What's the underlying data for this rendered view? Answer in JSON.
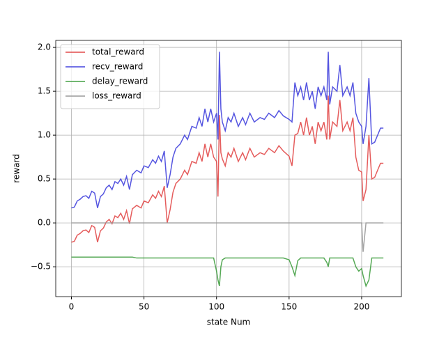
{
  "chart_data": {
    "type": "line",
    "xlabel": "state Num",
    "ylabel": "reward",
    "xlim": [
      -10.8,
      227.4
    ],
    "ylim": [
      -0.84,
      2.08
    ],
    "xticks": [
      0,
      50,
      100,
      150,
      200
    ],
    "yticks": [
      {
        "value": -0.5,
        "label": "−0.5"
      },
      {
        "value": 0,
        "label": "0.0"
      },
      {
        "value": 0.5,
        "label": "0.5"
      },
      {
        "value": 1,
        "label": "1.0"
      },
      {
        "value": 1.5,
        "label": "1.5"
      },
      {
        "value": 2,
        "label": "2.0"
      }
    ],
    "grid": true,
    "legend": "upper-left",
    "x": [
      0,
      2,
      4,
      6,
      8,
      10,
      12,
      14,
      16,
      18,
      20,
      22,
      24,
      26,
      28,
      30,
      32,
      34,
      36,
      38,
      40,
      42,
      45,
      48,
      50,
      53,
      56,
      58,
      60,
      62,
      64,
      66,
      68,
      70,
      72,
      75,
      78,
      80,
      83,
      86,
      88,
      90,
      92,
      94,
      96,
      98,
      100,
      101,
      102,
      103,
      104,
      106,
      108,
      110,
      112,
      115,
      118,
      120,
      123,
      126,
      130,
      133,
      136,
      140,
      143,
      146,
      150,
      152,
      154,
      156,
      158,
      160,
      162,
      164,
      166,
      168,
      170,
      172,
      174,
      176,
      177,
      178,
      180,
      183,
      185,
      187,
      190,
      192,
      194,
      196,
      198,
      200,
      201,
      203,
      205,
      207,
      209,
      211,
      213,
      215
    ],
    "series": [
      {
        "name": "total_reward",
        "color": "#e24a4a",
        "values": [
          -0.22,
          -0.21,
          -0.14,
          -0.12,
          -0.09,
          -0.08,
          -0.11,
          -0.03,
          -0.05,
          -0.22,
          -0.09,
          -0.06,
          0.01,
          0.04,
          -0.01,
          0.08,
          0.06,
          0.11,
          0.04,
          0.14,
          -0.01,
          0.16,
          0.2,
          0.17,
          0.25,
          0.23,
          0.32,
          0.28,
          0.36,
          0.3,
          0.42,
          0.0,
          0.15,
          0.35,
          0.45,
          0.5,
          0.6,
          0.55,
          0.7,
          0.68,
          0.8,
          0.7,
          0.9,
          0.75,
          0.9,
          0.75,
          0.7,
          0.3,
          1.23,
          0.8,
          0.73,
          0.65,
          0.8,
          0.75,
          0.85,
          0.7,
          0.8,
          0.72,
          0.85,
          0.75,
          0.8,
          0.78,
          0.85,
          0.8,
          0.88,
          0.82,
          0.76,
          0.65,
          1.0,
          1.02,
          1.15,
          1.0,
          1.2,
          1.0,
          1.1,
          0.9,
          1.15,
          1.05,
          1.15,
          0.95,
          1.45,
          0.95,
          1.15,
          1.1,
          1.4,
          1.05,
          1.15,
          1.05,
          1.2,
          0.75,
          0.6,
          0.58,
          0.25,
          0.38,
          1.0,
          0.5,
          0.52,
          0.6,
          0.68,
          0.68
        ]
      },
      {
        "name": "recv_reward",
        "color": "#4343dd",
        "values": [
          0.17,
          0.18,
          0.25,
          0.27,
          0.3,
          0.31,
          0.28,
          0.36,
          0.34,
          0.17,
          0.3,
          0.33,
          0.4,
          0.43,
          0.38,
          0.47,
          0.45,
          0.5,
          0.43,
          0.53,
          0.38,
          0.55,
          0.6,
          0.57,
          0.65,
          0.63,
          0.72,
          0.68,
          0.76,
          0.7,
          0.82,
          0.4,
          0.55,
          0.75,
          0.85,
          0.9,
          1.0,
          0.95,
          1.1,
          1.08,
          1.2,
          1.1,
          1.3,
          1.15,
          1.3,
          1.15,
          1.25,
          0.95,
          1.95,
          1.3,
          1.15,
          1.05,
          1.2,
          1.15,
          1.25,
          1.1,
          1.2,
          1.12,
          1.25,
          1.15,
          1.2,
          1.18,
          1.25,
          1.2,
          1.28,
          1.22,
          1.18,
          1.15,
          1.6,
          1.45,
          1.55,
          1.4,
          1.6,
          1.4,
          1.5,
          1.3,
          1.55,
          1.45,
          1.55,
          1.4,
          1.95,
          1.35,
          1.55,
          1.5,
          1.8,
          1.45,
          1.55,
          1.45,
          1.6,
          1.25,
          1.15,
          1.1,
          0.9,
          1.1,
          1.65,
          0.9,
          0.92,
          1.0,
          1.08,
          1.08
        ]
      },
      {
        "name": "delay_reward",
        "color": "#44a044",
        "values": [
          -0.39,
          -0.39,
          -0.39,
          -0.39,
          -0.39,
          -0.39,
          -0.39,
          -0.39,
          -0.39,
          -0.39,
          -0.39,
          -0.39,
          -0.39,
          -0.39,
          -0.39,
          -0.39,
          -0.39,
          -0.39,
          -0.39,
          -0.39,
          -0.39,
          -0.39,
          -0.4,
          -0.4,
          -0.4,
          -0.4,
          -0.4,
          -0.4,
          -0.4,
          -0.4,
          -0.4,
          -0.4,
          -0.4,
          -0.4,
          -0.4,
          -0.4,
          -0.4,
          -0.4,
          -0.4,
          -0.4,
          -0.4,
          -0.4,
          -0.4,
          -0.4,
          -0.4,
          -0.4,
          -0.55,
          -0.65,
          -0.72,
          -0.5,
          -0.42,
          -0.4,
          -0.4,
          -0.4,
          -0.4,
          -0.4,
          -0.4,
          -0.4,
          -0.4,
          -0.4,
          -0.4,
          -0.4,
          -0.4,
          -0.4,
          -0.4,
          -0.4,
          -0.42,
          -0.5,
          -0.6,
          -0.43,
          -0.4,
          -0.4,
          -0.4,
          -0.4,
          -0.4,
          -0.4,
          -0.4,
          -0.4,
          -0.4,
          -0.45,
          -0.5,
          -0.4,
          -0.4,
          -0.4,
          -0.4,
          -0.4,
          -0.4,
          -0.4,
          -0.4,
          -0.5,
          -0.55,
          -0.52,
          -0.6,
          -0.72,
          -0.65,
          -0.4,
          -0.4,
          -0.4,
          -0.4,
          -0.4
        ]
      },
      {
        "name": "loss_reward",
        "color": "#999999",
        "values": [
          0,
          0,
          0,
          0,
          0,
          0,
          0,
          0,
          0,
          0,
          0,
          0,
          0,
          0,
          0,
          0,
          0,
          0,
          0,
          0,
          0,
          0,
          0,
          0,
          0,
          0,
          0,
          0,
          0,
          0,
          0,
          0,
          0,
          0,
          0,
          0,
          0,
          0,
          0,
          0,
          0,
          0,
          0,
          0,
          0,
          0,
          0,
          0,
          0,
          0,
          0,
          0,
          0,
          0,
          0,
          0,
          0,
          0,
          0,
          0,
          0,
          0,
          0,
          0,
          0,
          0,
          0,
          0,
          0,
          0,
          0,
          0,
          0,
          0,
          0,
          0,
          0,
          0,
          0,
          0,
          0,
          0,
          0,
          0,
          0,
          0,
          0,
          0,
          0,
          0,
          0,
          0,
          -0.33,
          0,
          0,
          0,
          0,
          0,
          0,
          0
        ]
      }
    ]
  }
}
